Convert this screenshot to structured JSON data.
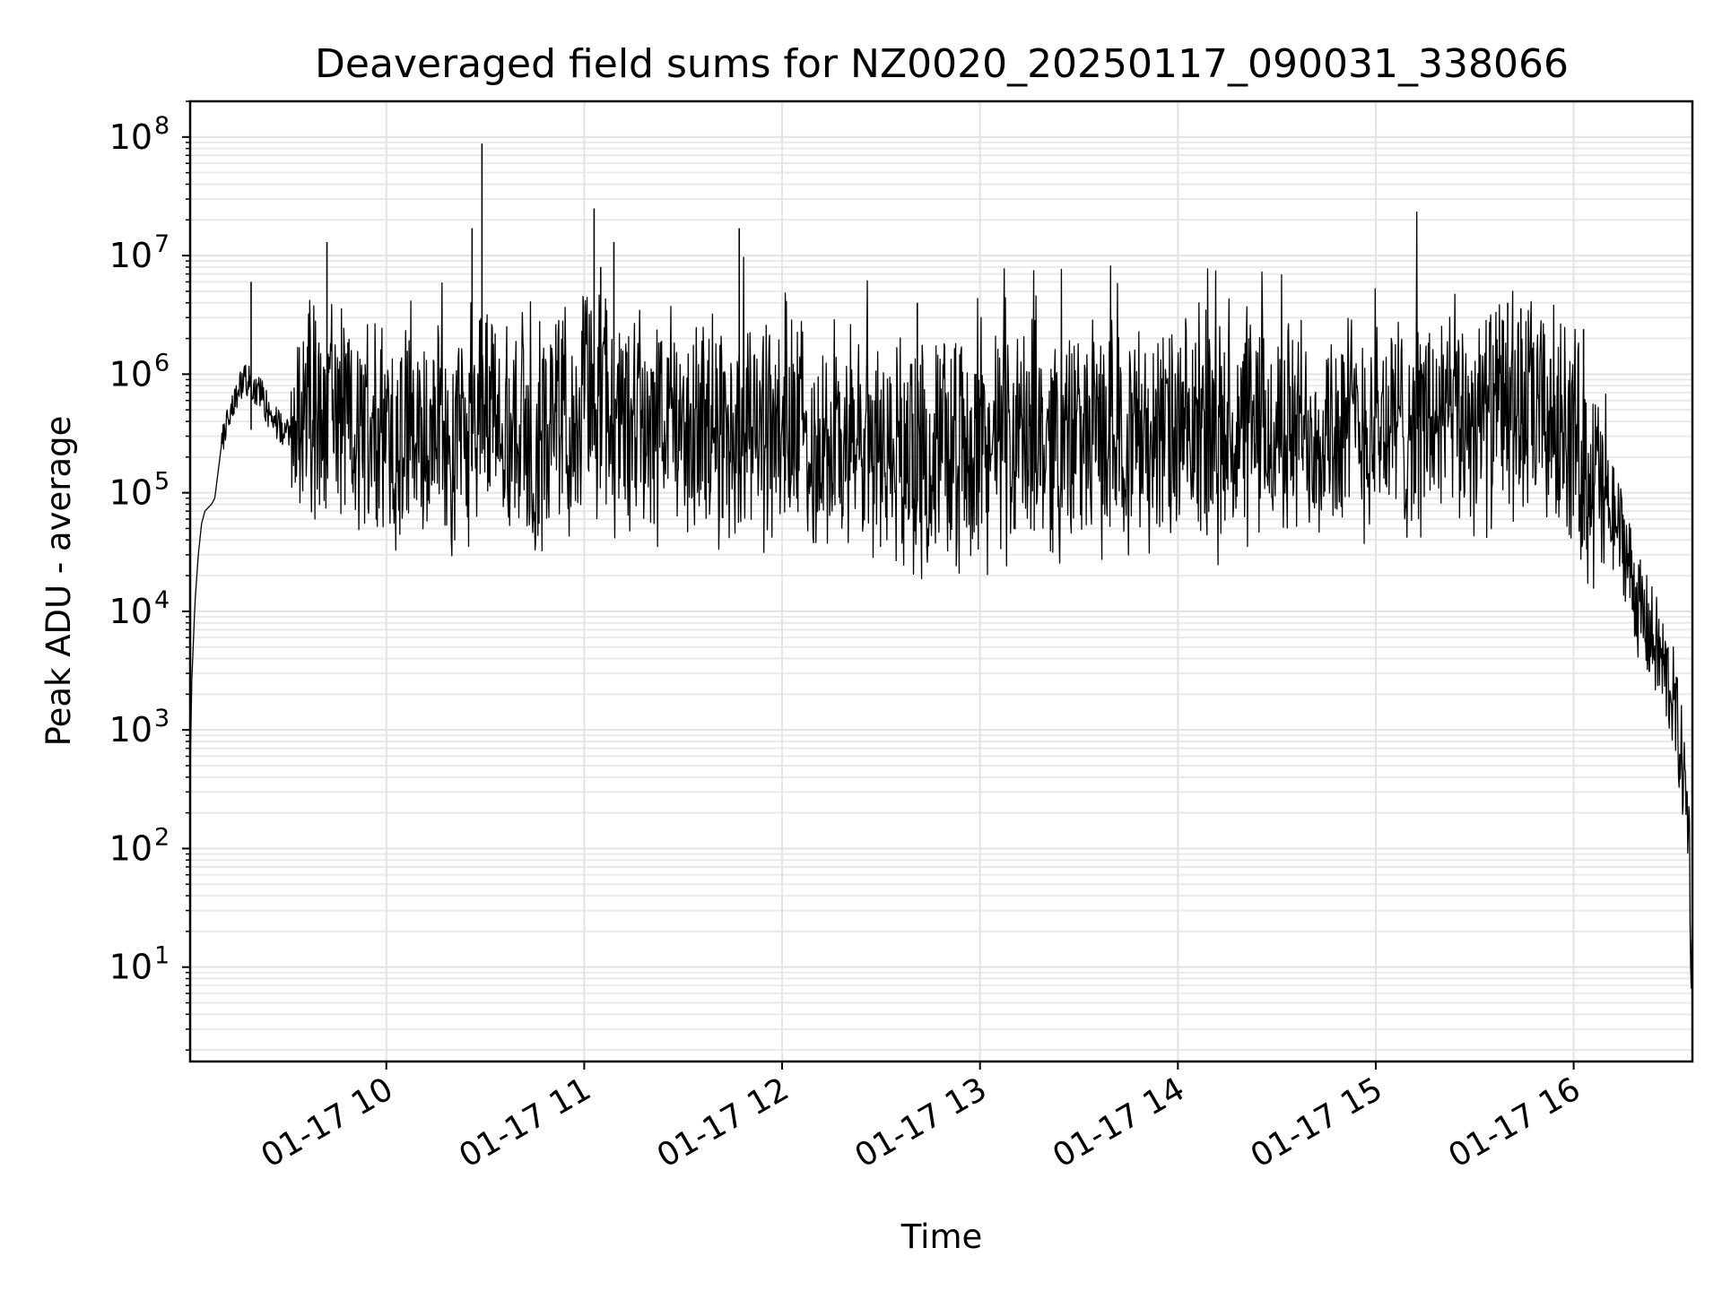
{
  "chart_data": {
    "type": "line",
    "title": "Deaveraged field sums for NZ0020_20250117_090031_338066",
    "xlabel": "Time",
    "ylabel": "Peak ADU - average",
    "yscale": "log",
    "ylim": [
      1.6,
      200000000
    ],
    "xlim": [
      "2025-01-17 09:00:31",
      "2025-01-17 16:36:00"
    ],
    "grid": "major and minor",
    "legend": "none",
    "xticks": [
      {
        "value": "2025-01-17 10:00",
        "label": "01-17 10"
      },
      {
        "value": "2025-01-17 11:00",
        "label": "01-17 11"
      },
      {
        "value": "2025-01-17 12:00",
        "label": "01-17 12"
      },
      {
        "value": "2025-01-17 13:00",
        "label": "01-17 13"
      },
      {
        "value": "2025-01-17 14:00",
        "label": "01-17 14"
      },
      {
        "value": "2025-01-17 15:00",
        "label": "01-17 15"
      },
      {
        "value": "2025-01-17 16:00",
        "label": "01-17 16"
      }
    ],
    "yticks": [
      {
        "value": 10,
        "base": "10",
        "exp": "1"
      },
      {
        "value": 100,
        "base": "10",
        "exp": "2"
      },
      {
        "value": 1000,
        "base": "10",
        "exp": "3"
      },
      {
        "value": 10000,
        "base": "10",
        "exp": "4"
      },
      {
        "value": 100000,
        "base": "10",
        "exp": "5"
      },
      {
        "value": 1000000,
        "base": "10",
        "exp": "6"
      },
      {
        "value": 10000000,
        "base": "10",
        "exp": "7"
      },
      {
        "value": 100000000,
        "base": "10",
        "exp": "8"
      }
    ],
    "series": [
      {
        "color": "#000000",
        "x": [
          "2025-01-17 09:00:31",
          "2025-01-17 09:01",
          "2025-01-17 09:02",
          "2025-01-17 09:03",
          "2025-01-17 09:04",
          "2025-01-17 09:05",
          "2025-01-17 09:06",
          "2025-01-17 09:07",
          "2025-01-17 09:08",
          "2025-01-17 09:09",
          "2025-01-17 09:10",
          "2025-01-17 09:12",
          "2025-01-17 09:14",
          "2025-01-17 09:16",
          "2025-01-17 09:18",
          "2025-01-17 09:20",
          "2025-01-17 09:22",
          "2025-01-17 09:24",
          "2025-01-17 09:26",
          "2025-01-17 09:28",
          "2025-01-17 09:30",
          "2025-01-17 09:35",
          "2025-01-17 09:40",
          "2025-01-17 09:45",
          "2025-01-17 09:50",
          "2025-01-17 09:55",
          "2025-01-17 10:00",
          "2025-01-17 10:05",
          "2025-01-17 10:10",
          "2025-01-17 10:15",
          "2025-01-17 10:20",
          "2025-01-17 10:25",
          "2025-01-17 10:30",
          "2025-01-17 10:35",
          "2025-01-17 10:40",
          "2025-01-17 10:45",
          "2025-01-17 10:50",
          "2025-01-17 10:55",
          "2025-01-17 11:00",
          "2025-01-17 11:05",
          "2025-01-17 11:10",
          "2025-01-17 11:15",
          "2025-01-17 11:20",
          "2025-01-17 11:30",
          "2025-01-17 11:40",
          "2025-01-17 11:50",
          "2025-01-17 12:00",
          "2025-01-17 12:10",
          "2025-01-17 12:20",
          "2025-01-17 12:30",
          "2025-01-17 12:40",
          "2025-01-17 12:50",
          "2025-01-17 13:00",
          "2025-01-17 13:10",
          "2025-01-17 13:20",
          "2025-01-17 13:30",
          "2025-01-17 13:40",
          "2025-01-17 13:50",
          "2025-01-17 14:00",
          "2025-01-17 14:10",
          "2025-01-17 14:20",
          "2025-01-17 14:30",
          "2025-01-17 14:40",
          "2025-01-17 14:50",
          "2025-01-17 15:00",
          "2025-01-17 15:10",
          "2025-01-17 15:20",
          "2025-01-17 15:30",
          "2025-01-17 15:40",
          "2025-01-17 15:50",
          "2025-01-17 16:00",
          "2025-01-17 16:05",
          "2025-01-17 16:10",
          "2025-01-17 16:15",
          "2025-01-17 16:20",
          "2025-01-17 16:25",
          "2025-01-17 16:30",
          "2025-01-17 16:33",
          "2025-01-17 16:35",
          "2025-01-17 16:36"
        ],
        "y": [
          400,
          2500,
          12000,
          30000,
          55000,
          70000,
          75000,
          80000,
          90000,
          150000,
          250000,
          400000,
          600000,
          800000,
          900000,
          800000,
          700000,
          500000,
          400000,
          350000,
          300000,
          500000,
          450000,
          400000,
          350000,
          320000,
          350000,
          300000,
          320000,
          330000,
          310000,
          340000,
          600000,
          350000,
          330000,
          320000,
          330000,
          380000,
          600000,
          650000,
          350000,
          450000,
          380000,
          340000,
          350000,
          360000,
          320000,
          280000,
          250000,
          230000,
          210000,
          220000,
          240000,
          260000,
          280000,
          300000,
          320000,
          310000,
          280000,
          270000,
          300000,
          330000,
          350000,
          360000,
          380000,
          380000,
          420000,
          450000,
          480000,
          450000,
          300000,
          150000,
          80000,
          40000,
          10000,
          5000,
          2000,
          500,
          150,
          4
        ]
      },
      {
        "color": "#000000",
        "spikes": [
          {
            "x": "2025-01-17 09:19",
            "y": 6000000
          },
          {
            "x": "2025-01-17 09:42",
            "y": 13000000
          },
          {
            "x": "2025-01-17 10:26",
            "y": 17000000
          },
          {
            "x": "2025-01-17 10:29",
            "y": 88000000
          },
          {
            "x": "2025-01-17 11:03",
            "y": 25000000
          },
          {
            "x": "2025-01-17 11:05",
            "y": 8000000
          },
          {
            "x": "2025-01-17 11:09",
            "y": 13000000
          },
          {
            "x": "2025-01-17 11:47",
            "y": 17000000
          },
          {
            "x": "2025-01-17 12:01",
            "y": 4000000
          },
          {
            "x": "2025-01-17 12:41",
            "y": 4000000
          },
          {
            "x": "2025-01-17 15:40",
            "y": 4000000
          },
          {
            "x": "2025-01-17 15:44",
            "y": 3600000
          },
          {
            "x": "2025-01-17 16:03",
            "y": 2400000
          }
        ]
      }
    ]
  }
}
